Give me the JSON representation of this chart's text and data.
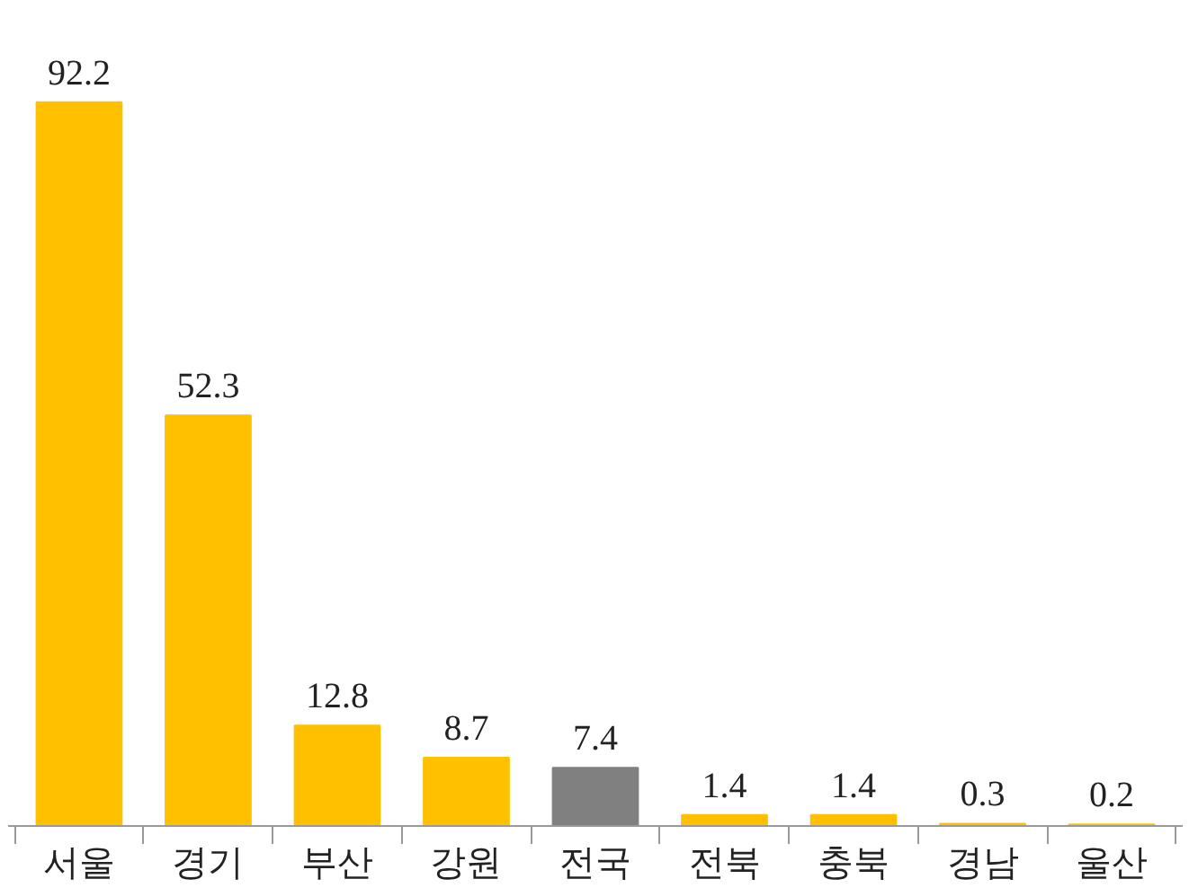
{
  "chart_data": {
    "type": "bar",
    "categories": [
      "서울",
      "경기",
      "부산",
      "강원",
      "전국",
      "전북",
      "충북",
      "경남",
      "울산"
    ],
    "values": [
      92.2,
      52.3,
      12.8,
      8.7,
      7.4,
      1.4,
      1.4,
      0.3,
      0.2
    ],
    "colors": [
      "#ffc000",
      "#ffc000",
      "#ffc000",
      "#ffc000",
      "#808080",
      "#ffc000",
      "#ffc000",
      "#ffc000",
      "#ffc000"
    ],
    "data_labels": true
  }
}
